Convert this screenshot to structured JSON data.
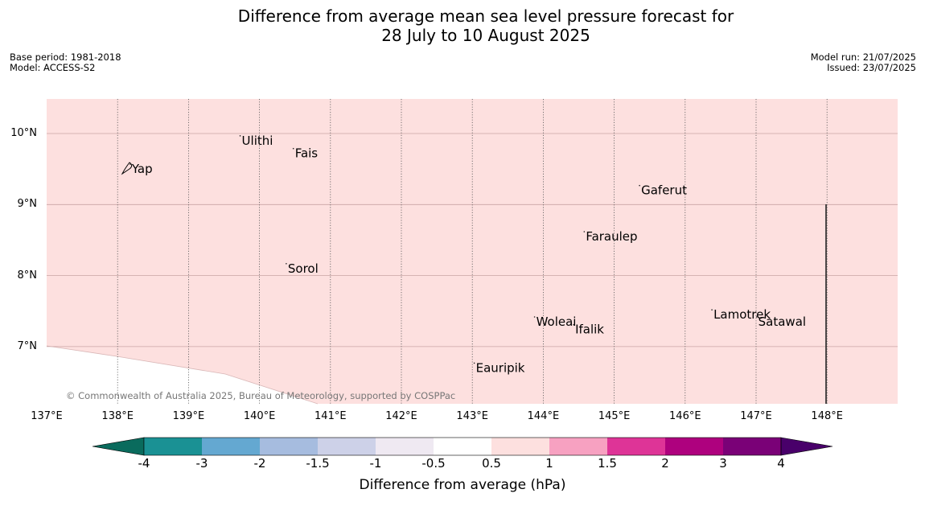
{
  "title": {
    "line1": "Difference from average mean sea level pressure forecast for",
    "line2": "28 July to 10 August 2025"
  },
  "meta": {
    "base_period": "Base period: 1981-2018",
    "model": "Model: ACCESS-S2",
    "model_run": "Model run: 21/07/2025",
    "issued": "Issued: 23/07/2025"
  },
  "map": {
    "background_color": "#fde0df",
    "anomaly_range_hpa": "0.5 to 1",
    "copyright": "© Commonwealth of Australia 2025, Bureau of Meteorology, supported by COSPPac",
    "latitude_labels": [
      "10°N",
      "9°N",
      "8°N",
      "7°N"
    ],
    "longitude_labels": [
      "137°E",
      "138°E",
      "139°E",
      "140°E",
      "141°E",
      "142°E",
      "143°E",
      "144°E",
      "145°E",
      "146°E",
      "147°E",
      "148°E"
    ],
    "places": [
      {
        "name": "Yap",
        "lon": 138.2,
        "lat": 9.5
      },
      {
        "name": "Ulithi",
        "lon": 139.75,
        "lat": 9.9
      },
      {
        "name": "Fais",
        "lon": 140.5,
        "lat": 9.72
      },
      {
        "name": "Gaferut",
        "lon": 145.38,
        "lat": 9.2
      },
      {
        "name": "Faraulep",
        "lon": 144.6,
        "lat": 8.55
      },
      {
        "name": "Sorol",
        "lon": 140.4,
        "lat": 8.1
      },
      {
        "name": "Woleai",
        "lon": 143.9,
        "lat": 7.35
      },
      {
        "name": "Ifalik",
        "lon": 144.45,
        "lat": 7.24
      },
      {
        "name": "Lamotrek",
        "lon": 146.4,
        "lat": 7.45
      },
      {
        "name": "Satawal",
        "lon": 147.03,
        "lat": 7.35
      },
      {
        "name": "Eauripik",
        "lon": 143.05,
        "lat": 6.7
      }
    ]
  },
  "colorbar": {
    "title": "Difference from average (hPa)",
    "tick_labels": [
      "-4",
      "-3",
      "-2",
      "-1.5",
      "-1",
      "-0.5",
      "0.5",
      "1",
      "1.5",
      "2",
      "3",
      "4"
    ],
    "colors": [
      "#0a6b5d",
      "#1a9194",
      "#64a8d1",
      "#a6bcdf",
      "#cdd1e8",
      "#efe9f2",
      "#ffffff",
      "#fde0df",
      "#f7a1c1",
      "#de3497",
      "#ae017e",
      "#7a0177",
      "#49006a"
    ]
  }
}
